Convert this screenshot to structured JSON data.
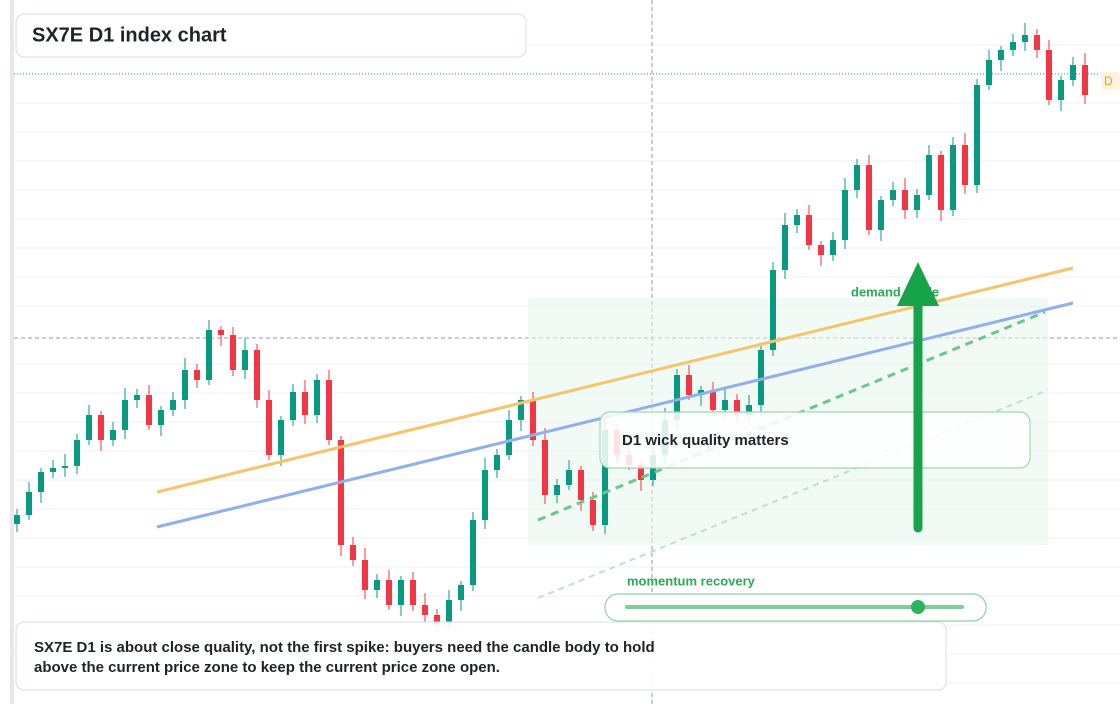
{
  "header": {
    "title": "SX7E D1 index chart"
  },
  "chart_data": {
    "type": "candlestick",
    "open": [
      180,
      189,
      212,
      232,
      236,
      238,
      264,
      289,
      264,
      274,
      304,
      309,
      279,
      294,
      304,
      334,
      324,
      374,
      369,
      334,
      354,
      304,
      249,
      284,
      312,
      289,
      324,
      264,
      159,
      144,
      114,
      124,
      99,
      124,
      99,
      89,
      79,
      104,
      119,
      184,
      234,
      249,
      284,
      304,
      264,
      209,
      219,
      234,
      204,
      179,
      274,
      249,
      239,
      224,
      249,
      284,
      329,
      309,
      314,
      294,
      304,
      289,
      299,
      354,
      434,
      479,
      489,
      459,
      449,
      464,
      514,
      539,
      474,
      504,
      514,
      494,
      509,
      549,
      494,
      559,
      519,
      619,
      644,
      654,
      662,
      669,
      654,
      604,
      624,
      639
    ],
    "high": [
      195,
      222,
      236,
      244,
      250,
      270,
      299,
      293,
      282,
      316,
      315,
      319,
      298,
      312,
      346,
      340,
      384,
      378,
      377,
      366,
      360,
      314,
      288,
      320,
      324,
      330,
      334,
      268,
      167,
      156,
      130,
      134,
      128,
      132,
      111,
      95,
      114,
      123,
      192,
      246,
      255,
      294,
      308,
      312,
      276,
      225,
      244,
      238,
      212,
      286,
      280,
      259,
      243,
      257,
      296,
      335,
      339,
      318,
      322,
      316,
      310,
      309,
      358,
      442,
      491,
      495,
      499,
      463,
      472,
      526,
      545,
      549,
      508,
      522,
      526,
      515,
      559,
      553,
      567,
      571,
      625,
      654,
      658,
      670,
      681,
      675,
      664,
      628,
      647,
      651
    ],
    "low": [
      172,
      184,
      201,
      226,
      227,
      230,
      259,
      253,
      258,
      265,
      296,
      274,
      268,
      288,
      295,
      316,
      319,
      358,
      328,
      325,
      296,
      244,
      238,
      278,
      280,
      281,
      259,
      148,
      138,
      105,
      106,
      94,
      88,
      93,
      80,
      71,
      74,
      93,
      113,
      175,
      226,
      244,
      273,
      258,
      200,
      201,
      214,
      193,
      173,
      170,
      241,
      234,
      213,
      218,
      240,
      276,
      304,
      298,
      288,
      285,
      281,
      284,
      288,
      348,
      425,
      471,
      454,
      438,
      443,
      455,
      506,
      469,
      463,
      498,
      485,
      486,
      504,
      483,
      488,
      510,
      511,
      614,
      633,
      648,
      653,
      646,
      599,
      593,
      618,
      600
    ],
    "close": [
      189,
      212,
      232,
      236,
      238,
      264,
      289,
      264,
      274,
      304,
      309,
      279,
      294,
      304,
      334,
      324,
      374,
      369,
      334,
      354,
      304,
      249,
      284,
      312,
      289,
      324,
      264,
      159,
      144,
      114,
      124,
      99,
      124,
      99,
      89,
      79,
      104,
      119,
      184,
      234,
      249,
      284,
      304,
      264,
      209,
      219,
      234,
      204,
      179,
      274,
      249,
      239,
      224,
      249,
      284,
      329,
      309,
      314,
      294,
      304,
      289,
      299,
      354,
      434,
      479,
      489,
      459,
      449,
      464,
      514,
      539,
      474,
      504,
      514,
      494,
      509,
      549,
      494,
      559,
      519,
      619,
      644,
      654,
      662,
      669,
      654,
      604,
      624,
      639,
      609
    ],
    "ylim": [
      0,
      704
    ],
    "up_color": "#089981",
    "down_color": "#f23645"
  },
  "annotations": {
    "zone_label": "demand guide",
    "callout": "D1 wick quality matters",
    "slider_label": "momentum recovery",
    "price_badge": "D"
  },
  "note": {
    "lines": [
      "SX7E D1 is about close quality, not the first spike: buyers need the candle body to hold",
      "above the current price zone to keep the current price zone open."
    ]
  }
}
